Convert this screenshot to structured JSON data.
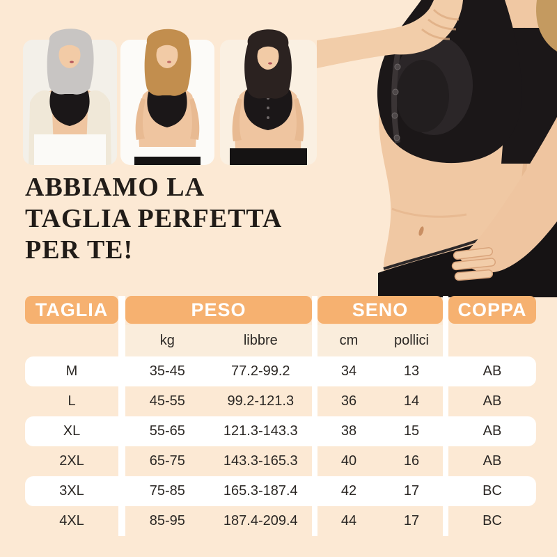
{
  "colors": {
    "page_bg": "#FCE9D4",
    "header_bg": "#F6B170",
    "band_bg": "#FAEDDC",
    "row_white": "#FFFFFF",
    "title_color": "#211C18",
    "table_text": "#2B2724",
    "header_text": "#FFFFFF",
    "garment_black": "#1B1718"
  },
  "title": {
    "line1": "ABBIAMO LA",
    "line2": "TAGLIA PERFETTA",
    "line3": "PER TE!"
  },
  "table": {
    "headers": [
      "TAGLIA",
      "PESO",
      "SENO",
      "COPPA"
    ],
    "subheaders": {
      "peso": [
        "kg",
        "libbre"
      ],
      "seno": [
        "cm",
        "pollici"
      ]
    },
    "rows": [
      {
        "taglia": "M",
        "kg": "35-45",
        "libbre": "77.2-99.2",
        "cm": "34",
        "pollici": "13",
        "coppa": "AB"
      },
      {
        "taglia": "L",
        "kg": "45-55",
        "libbre": "99.2-121.3",
        "cm": "36",
        "pollici": "14",
        "coppa": "AB"
      },
      {
        "taglia": "XL",
        "kg": "55-65",
        "libbre": "121.3-143.3",
        "cm": "38",
        "pollici": "15",
        "coppa": "AB"
      },
      {
        "taglia": "2XL",
        "kg": "65-75",
        "libbre": "143.3-165.3",
        "cm": "40",
        "pollici": "16",
        "coppa": "AB"
      },
      {
        "taglia": "3XL",
        "kg": "75-85",
        "libbre": "165.3-187.4",
        "cm": "42",
        "pollici": "17",
        "coppa": "BC"
      },
      {
        "taglia": "4XL",
        "kg": "85-95",
        "libbre": "187.4-209.4",
        "cm": "44",
        "pollici": "17",
        "coppa": "BC"
      }
    ]
  },
  "chart_data": {
    "type": "table",
    "title": "ABBIAMO LA TAGLIA PERFETTA PER TE!",
    "columns": [
      "TAGLIA",
      "PESO (kg)",
      "PESO (libbre)",
      "SENO (cm)",
      "SENO (pollici)",
      "COPPA"
    ],
    "rows": [
      [
        "M",
        "35-45",
        "77.2-99.2",
        "34",
        "13",
        "AB"
      ],
      [
        "L",
        "45-55",
        "99.2-121.3",
        "36",
        "14",
        "AB"
      ],
      [
        "XL",
        "55-65",
        "121.3-143.3",
        "38",
        "15",
        "AB"
      ],
      [
        "2XL",
        "65-75",
        "143.3-165.3",
        "40",
        "16",
        "AB"
      ],
      [
        "3XL",
        "75-85",
        "165.3-187.4",
        "42",
        "17",
        "BC"
      ],
      [
        "4XL",
        "85-95",
        "187.4-209.4",
        "44",
        "17",
        "BC"
      ]
    ]
  }
}
